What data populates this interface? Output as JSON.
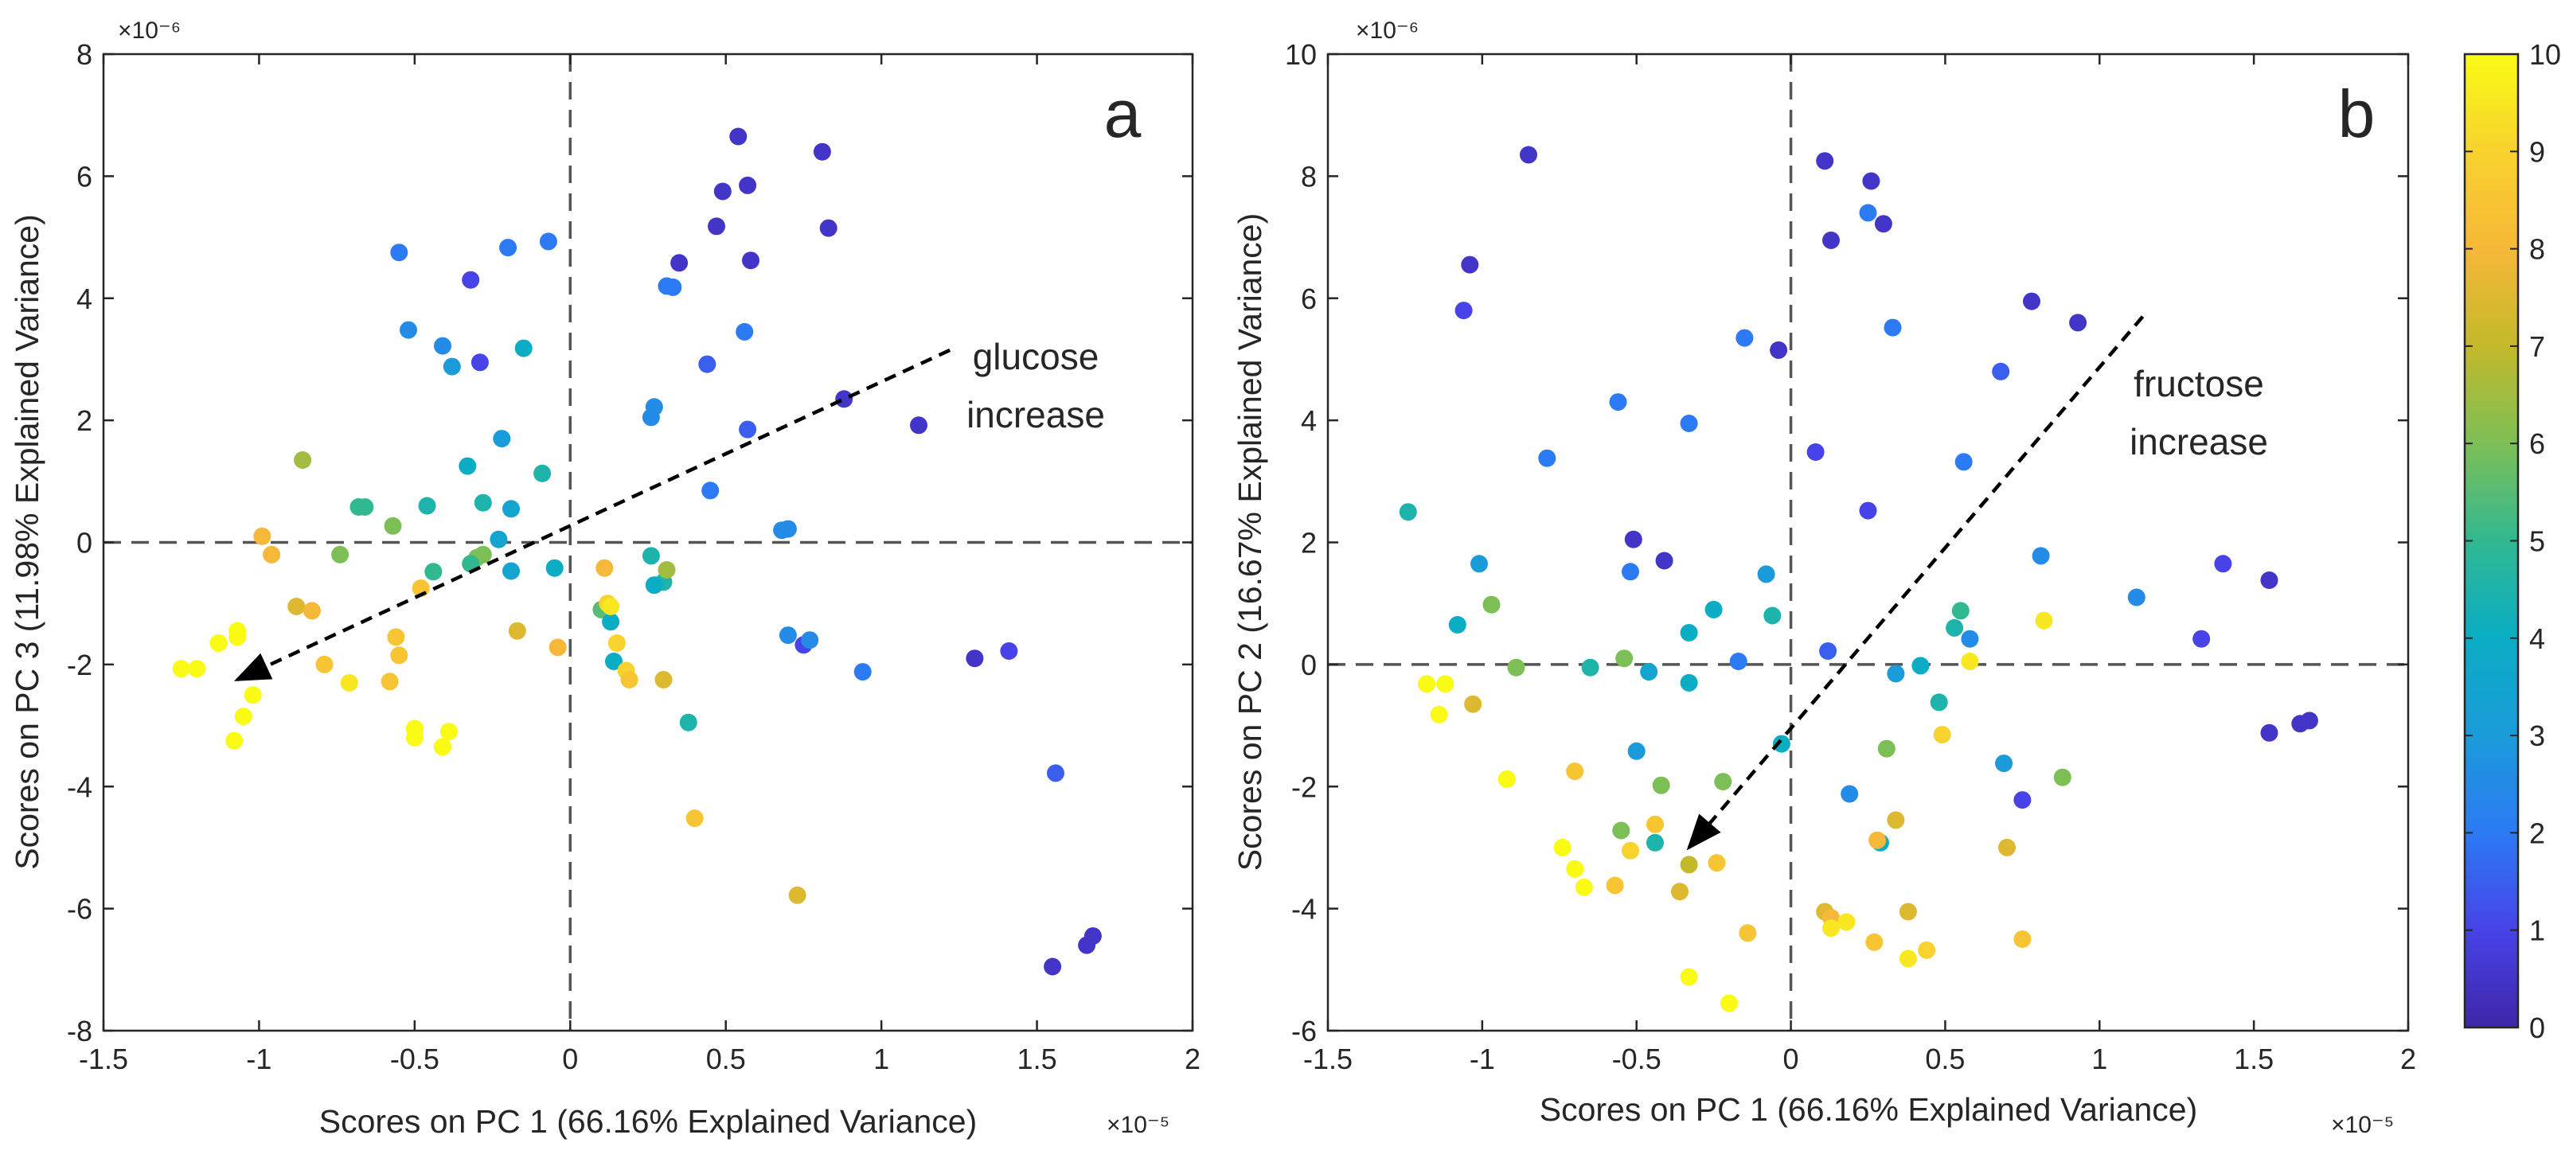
{
  "colormap": {
    "name": "parula",
    "stops": [
      "#3e26a8",
      "#4743e8",
      "#2c7af4",
      "#1b9bd9",
      "#0aadc4",
      "#31b891",
      "#7dbf57",
      "#c4b92a",
      "#f6b838",
      "#f8d22e",
      "#f9fb15"
    ]
  },
  "colorbar": {
    "range": [
      0,
      10
    ],
    "tick_labels": [
      "0",
      "1",
      "2",
      "3",
      "4",
      "5",
      "6",
      "7",
      "8",
      "9",
      "10"
    ]
  },
  "chart_data": [
    {
      "type": "scatter",
      "panel_label": "a",
      "xlabel": "Scores on PC 1 (66.16% Explained Variance)",
      "ylabel": "Scores on PC 3 (11.98% Explained Variance)",
      "x_multiplier": "×10⁻⁵",
      "y_multiplier": "×10⁻⁶",
      "xlim": [
        -1.5,
        2
      ],
      "ylim": [
        -8,
        8
      ],
      "x_ticks": [
        -1.5,
        -1,
        -0.5,
        0,
        0.5,
        1,
        1.5,
        2
      ],
      "x_tick_labels": [
        "-1.5",
        "-1",
        "-0.5",
        "0",
        "0.5",
        "1",
        "1.5",
        "2"
      ],
      "y_ticks": [
        -8,
        -6,
        -4,
        -2,
        0,
        2,
        4,
        6,
        8
      ],
      "y_tick_labels": [
        "-8",
        "-6",
        "-4",
        "-2",
        "0",
        "2",
        "4",
        "6",
        "8"
      ],
      "grid": false,
      "reference_lines": {
        "x": 0,
        "y": 0,
        "style": "dashed"
      },
      "annotation": {
        "lines": [
          "glucose",
          "increase"
        ],
        "arrow_from": [
          1.22,
          3.15
        ],
        "arrow_to": [
          -1.07,
          -2.25
        ]
      },
      "points": [
        [
          0.54,
          6.65,
          0.5
        ],
        [
          0.81,
          6.4,
          0.5
        ],
        [
          0.49,
          5.75,
          0.5
        ],
        [
          0.57,
          5.85,
          0.5
        ],
        [
          0.47,
          5.18,
          0.5
        ],
        [
          0.83,
          5.15,
          0.5
        ],
        [
          0.35,
          4.58,
          0.5
        ],
        [
          0.58,
          4.62,
          0.5
        ],
        [
          -0.32,
          4.3,
          1
        ],
        [
          0.31,
          4.2,
          2
        ],
        [
          0.33,
          4.18,
          2
        ],
        [
          0.56,
          3.45,
          2
        ],
        [
          -0.29,
          2.95,
          1
        ],
        [
          0.44,
          2.92,
          1.5
        ],
        [
          0.88,
          2.35,
          0.5
        ],
        [
          1.12,
          1.92,
          0.5
        ],
        [
          0.57,
          1.85,
          1.5
        ],
        [
          0.27,
          2.22,
          2.5
        ],
        [
          0.26,
          2.05,
          2.5
        ],
        [
          0.45,
          0.85,
          2
        ],
        [
          0.7,
          0.22,
          2.5
        ],
        [
          0.68,
          0.2,
          2.5
        ],
        [
          0.7,
          -1.52,
          2.5
        ],
        [
          0.75,
          -1.68,
          1
        ],
        [
          0.77,
          -1.6,
          2.5
        ],
        [
          0.94,
          -2.12,
          2
        ],
        [
          1.3,
          -1.9,
          0.5
        ],
        [
          1.41,
          -1.78,
          1
        ],
        [
          1.56,
          -3.78,
          1.5
        ],
        [
          1.55,
          -6.95,
          0.5
        ],
        [
          1.66,
          -6.6,
          0.5
        ],
        [
          1.68,
          -6.45,
          0.5
        ],
        [
          -0.55,
          4.75,
          2
        ],
        [
          -0.2,
          4.83,
          2
        ],
        [
          -0.07,
          4.93,
          2
        ],
        [
          -0.52,
          3.48,
          2.5
        ],
        [
          -0.41,
          3.22,
          2.5
        ],
        [
          -0.38,
          2.88,
          3
        ],
        [
          -0.15,
          3.18,
          4
        ],
        [
          -0.22,
          1.7,
          3
        ],
        [
          -0.33,
          1.25,
          4
        ],
        [
          -0.09,
          1.13,
          4.5
        ],
        [
          -0.19,
          0.55,
          3.5
        ],
        [
          -0.46,
          0.6,
          4.5
        ],
        [
          -0.28,
          0.65,
          4.5
        ],
        [
          -0.23,
          0.05,
          3.5
        ],
        [
          -0.19,
          -0.47,
          3.5
        ],
        [
          -0.05,
          -0.42,
          4
        ],
        [
          -0.68,
          0.58,
          5
        ],
        [
          -0.66,
          0.58,
          5
        ],
        [
          -0.57,
          0.27,
          6
        ],
        [
          -0.74,
          -0.2,
          6
        ],
        [
          -0.44,
          -0.48,
          5
        ],
        [
          -0.3,
          -0.25,
          6
        ],
        [
          -0.28,
          -0.2,
          6
        ],
        [
          -0.32,
          -0.35,
          5
        ],
        [
          -0.86,
          1.35,
          6.5
        ],
        [
          0.26,
          -0.22,
          4.5
        ],
        [
          0.3,
          -0.65,
          4.5
        ],
        [
          0.27,
          -0.7,
          4
        ],
        [
          0.31,
          -0.45,
          6.5
        ],
        [
          0.1,
          -1.1,
          5.5
        ],
        [
          0.13,
          -1.3,
          4
        ],
        [
          0.14,
          -1.95,
          4
        ],
        [
          0.38,
          -2.95,
          4.5
        ],
        [
          -0.99,
          0.1,
          8
        ],
        [
          -0.96,
          -0.2,
          8
        ],
        [
          -0.88,
          -1.05,
          7.5
        ],
        [
          -0.83,
          -1.12,
          8
        ],
        [
          -0.48,
          -0.75,
          8.5
        ],
        [
          -0.17,
          -1.45,
          7.5
        ],
        [
          -0.04,
          -1.72,
          8
        ],
        [
          0.11,
          -0.42,
          8
        ],
        [
          0.12,
          -1.0,
          9
        ],
        [
          0.13,
          -1.05,
          9.5
        ],
        [
          0.15,
          -1.65,
          9
        ],
        [
          0.18,
          -2.1,
          9
        ],
        [
          0.19,
          -2.25,
          8.5
        ],
        [
          0.3,
          -2.25,
          7.5
        ],
        [
          0.4,
          -4.52,
          8.5
        ],
        [
          0.73,
          -5.78,
          7.5
        ],
        [
          -0.79,
          -2.0,
          8.5
        ],
        [
          -0.56,
          -1.55,
          8.5
        ],
        [
          -0.55,
          -1.85,
          8.5
        ],
        [
          -0.58,
          -2.28,
          8.5
        ],
        [
          -0.71,
          -2.3,
          9.5
        ],
        [
          -1.25,
          -2.07,
          10
        ],
        [
          -1.2,
          -2.07,
          10
        ],
        [
          -1.13,
          -1.65,
          10
        ],
        [
          -1.07,
          -1.45,
          10
        ],
        [
          -1.07,
          -1.55,
          10
        ],
        [
          -1.02,
          -2.5,
          10
        ],
        [
          -1.05,
          -2.85,
          10
        ],
        [
          -1.08,
          -3.25,
          10
        ],
        [
          -0.5,
          -3.05,
          10
        ],
        [
          -0.5,
          -3.2,
          10
        ],
        [
          -0.39,
          -3.1,
          10
        ],
        [
          -0.41,
          -3.35,
          10
        ]
      ]
    },
    {
      "type": "scatter",
      "panel_label": "b",
      "xlabel": "Scores on PC 1 (66.16% Explained Variance)",
      "ylabel": "Scores on PC 2 (16.67% Explained Variance)",
      "x_multiplier": "×10⁻⁵",
      "y_multiplier": "×10⁻⁶",
      "xlim": [
        -1.5,
        2
      ],
      "ylim": [
        -6,
        10
      ],
      "x_ticks": [
        -1.5,
        -1,
        -0.5,
        0,
        0.5,
        1,
        1.5,
        2
      ],
      "x_tick_labels": [
        "-1.5",
        "-1",
        "-0.5",
        "0",
        "0.5",
        "1",
        "1.5",
        "2"
      ],
      "y_ticks": [
        -6,
        -4,
        -2,
        0,
        2,
        4,
        6,
        8,
        10
      ],
      "y_tick_labels": [
        "-6",
        "-4",
        "-2",
        "0",
        "2",
        "4",
        "6",
        "8",
        "10"
      ],
      "grid": false,
      "reference_lines": {
        "x": 0,
        "y": 0,
        "style": "dashed"
      },
      "annotation": {
        "lines": [
          "fructose",
          "increase"
        ],
        "arrow_from": [
          1.14,
          5.7
        ],
        "arrow_to": [
          -0.33,
          -3.0
        ]
      },
      "points": [
        [
          -0.85,
          8.35,
          0.5
        ],
        [
          0.11,
          8.25,
          0.5
        ],
        [
          0.26,
          7.92,
          0.5
        ],
        [
          0.3,
          7.22,
          0.5
        ],
        [
          0.13,
          6.95,
          0.5
        ],
        [
          -1.04,
          6.55,
          0.5
        ],
        [
          -1.06,
          5.8,
          1
        ],
        [
          0.78,
          5.95,
          0.5
        ],
        [
          0.93,
          5.6,
          0.5
        ],
        [
          -0.04,
          5.15,
          0.5
        ],
        [
          0.08,
          3.48,
          1
        ],
        [
          0.25,
          2.52,
          1
        ],
        [
          -0.51,
          2.05,
          0.5
        ],
        [
          -0.41,
          1.7,
          0.5
        ],
        [
          1.4,
          1.65,
          1
        ],
        [
          1.55,
          1.38,
          0.5
        ],
        [
          1.33,
          0.42,
          1
        ],
        [
          1.55,
          -1.12,
          0.5
        ],
        [
          1.65,
          -0.97,
          0.5
        ],
        [
          1.68,
          -0.92,
          0.5
        ],
        [
          0.75,
          -2.22,
          1
        ],
        [
          0.68,
          4.8,
          1.5
        ],
        [
          -0.15,
          5.35,
          2
        ],
        [
          0.33,
          5.52,
          2
        ],
        [
          0.25,
          7.4,
          2
        ],
        [
          -0.56,
          4.3,
          2
        ],
        [
          -0.33,
          3.95,
          2
        ],
        [
          0.56,
          3.32,
          2
        ],
        [
          -0.79,
          3.38,
          2
        ],
        [
          -0.52,
          1.52,
          2
        ],
        [
          1.12,
          1.1,
          2.5
        ],
        [
          0.81,
          1.78,
          2.5
        ],
        [
          0.12,
          0.22,
          1.5
        ],
        [
          -0.17,
          0.05,
          2
        ],
        [
          0.58,
          0.42,
          2.5
        ],
        [
          -0.08,
          1.48,
          3
        ],
        [
          -0.5,
          -1.42,
          3
        ],
        [
          0.19,
          -2.12,
          2.5
        ],
        [
          0.69,
          -1.62,
          3
        ],
        [
          0.34,
          -0.15,
          3
        ],
        [
          -1.01,
          1.65,
          3
        ],
        [
          -1.08,
          0.65,
          4
        ],
        [
          -0.65,
          -0.05,
          4.5
        ],
        [
          -0.33,
          0.52,
          4
        ],
        [
          -0.46,
          -0.12,
          3.5
        ],
        [
          -0.33,
          -0.3,
          4
        ],
        [
          0.48,
          -0.62,
          4.5
        ],
        [
          0.53,
          0.6,
          4.5
        ],
        [
          -1.24,
          2.5,
          4.5
        ],
        [
          -0.06,
          0.8,
          4.5
        ],
        [
          -0.03,
          -1.3,
          4
        ],
        [
          0.42,
          -0.02,
          4
        ],
        [
          -0.25,
          0.9,
          4
        ],
        [
          0.55,
          0.88,
          5
        ],
        [
          -0.44,
          -2.92,
          4.5
        ],
        [
          0.29,
          -2.92,
          4
        ],
        [
          -0.97,
          0.98,
          6
        ],
        [
          -0.89,
          -0.05,
          6
        ],
        [
          -0.54,
          0.1,
          6
        ],
        [
          -0.55,
          -2.72,
          6
        ],
        [
          -0.42,
          -1.98,
          6
        ],
        [
          -0.22,
          -1.92,
          6
        ],
        [
          0.31,
          -1.38,
          6
        ],
        [
          0.88,
          -1.85,
          6
        ],
        [
          -1.03,
          -0.65,
          7.5
        ],
        [
          -0.33,
          -3.28,
          7
        ],
        [
          -0.36,
          -3.72,
          7.5
        ],
        [
          0.11,
          -4.05,
          7.5
        ],
        [
          0.13,
          -4.15,
          8
        ],
        [
          0.34,
          -2.55,
          7.5
        ],
        [
          0.38,
          -4.05,
          7.5
        ],
        [
          0.7,
          -3.0,
          7.5
        ],
        [
          0.28,
          -2.88,
          8
        ],
        [
          -0.7,
          -1.75,
          8.5
        ],
        [
          -0.44,
          -2.62,
          8.5
        ],
        [
          -0.24,
          -3.25,
          8.5
        ],
        [
          -0.57,
          -3.62,
          8.5
        ],
        [
          -0.14,
          -4.4,
          8.5
        ],
        [
          0.27,
          -4.55,
          8.5
        ],
        [
          0.44,
          -4.68,
          9
        ],
        [
          0.75,
          -4.5,
          8.5
        ],
        [
          0.49,
          -1.15,
          9
        ],
        [
          -0.52,
          -3.05,
          9
        ],
        [
          0.82,
          0.72,
          9.5
        ],
        [
          0.58,
          0.05,
          9.5
        ],
        [
          0.13,
          -4.32,
          9.5
        ],
        [
          0.18,
          -4.22,
          9.5
        ],
        [
          0.38,
          -4.82,
          9.5
        ],
        [
          -1.18,
          -0.32,
          10
        ],
        [
          -1.14,
          -0.82,
          10
        ],
        [
          -1.12,
          -0.32,
          10
        ],
        [
          -0.92,
          -1.88,
          10
        ],
        [
          -0.74,
          -3.0,
          10
        ],
        [
          -0.7,
          -3.35,
          10
        ],
        [
          -0.67,
          -3.65,
          10
        ],
        [
          -0.33,
          -5.12,
          10
        ],
        [
          -0.2,
          -5.55,
          10
        ]
      ]
    }
  ]
}
